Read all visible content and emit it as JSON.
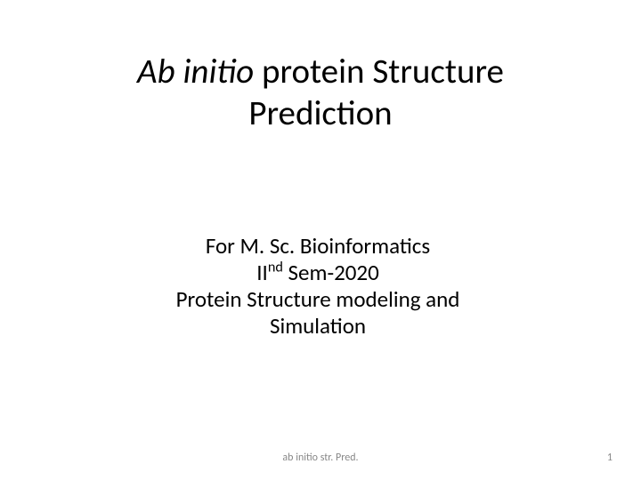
{
  "title": {
    "italic": "Ab initio",
    "rest": " protein Structure",
    "line2": "Prediction"
  },
  "subtitle": {
    "line1": "For M. Sc. Bioinformatics",
    "line2_prefix": "II",
    "line2_sup": "nd",
    "line2_rest": " Sem-2020",
    "line3": "Protein Structure modeling and",
    "line4": "Simulation"
  },
  "footer": {
    "center": "ab initio str. Pred.",
    "page": "1"
  },
  "colors": {
    "background": "#ffffff",
    "text": "#000000",
    "footer_text": "#888888"
  },
  "fonts": {
    "title_size_pt": 40,
    "subtitle_size_pt": 26,
    "footer_size_pt": 12,
    "family": "Calibri"
  }
}
